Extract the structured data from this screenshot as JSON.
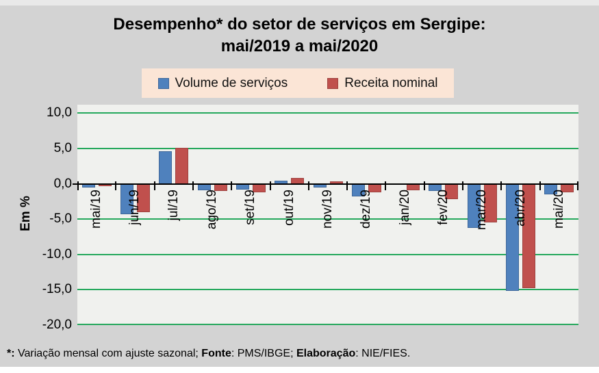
{
  "title": {
    "line1": "Desempenho* do setor de serviços em Sergipe:",
    "line2": "mai/2019 a mai/2020"
  },
  "legend": {
    "background": "#fbe5d6",
    "items": [
      {
        "label": "Volume de serviços",
        "color": "#4f81bd",
        "border": "#3f689a"
      },
      {
        "label": "Receita nominal",
        "color": "#c0504d",
        "border": "#9e4340"
      }
    ]
  },
  "chart_data": {
    "type": "bar",
    "title": "Desempenho* do setor de serviços em Sergipe: mai/2019 a mai/2020",
    "ylabel": "Em %",
    "xlabel": "",
    "categories": [
      "mai/19",
      "jun/19",
      "jul/19",
      "ago/19",
      "set/19",
      "out/19",
      "nov/19",
      "dez/19",
      "jan/20",
      "fev/20",
      "mar/20",
      "abr/20",
      "mai/20"
    ],
    "series": [
      {
        "name": "Volume de serviços",
        "color": "#4f81bd",
        "border": "#3f689a",
        "values": [
          -0.5,
          -4.3,
          4.6,
          -0.9,
          -0.8,
          0.4,
          -0.5,
          -1.8,
          0.0,
          -1.0,
          -6.2,
          -15.2,
          -1.5
        ]
      },
      {
        "name": "Receita nominal",
        "color": "#c0504d",
        "border": "#9e4340",
        "values": [
          -0.3,
          -4.0,
          5.1,
          -1.0,
          -1.2,
          0.8,
          0.3,
          -1.2,
          -0.9,
          -2.2,
          -5.5,
          -14.8,
          -1.2
        ]
      }
    ],
    "yticks": [
      10,
      5,
      0,
      -5,
      -10,
      -15,
      -20
    ],
    "ytick_labels": [
      "10,0",
      "5,0",
      "0,0",
      "-5,0",
      "-10,0",
      "-15,0",
      "-20,0"
    ],
    "ylim": [
      -20,
      11.2
    ],
    "grid": true,
    "grid_color": "#25a85c",
    "plot_background": "#f0f1ee",
    "legend_position": "top"
  },
  "footnote": {
    "segments": [
      {
        "text": "*:",
        "bold": true
      },
      {
        "text": " Variação mensal com ajuste sazonal; ",
        "bold": false
      },
      {
        "text": "Fonte",
        "bold": true
      },
      {
        "text": ": PMS/IBGE; ",
        "bold": false
      },
      {
        "text": "Elaboração",
        "bold": true
      },
      {
        "text": ": NIE/FIES.",
        "bold": false
      }
    ]
  }
}
